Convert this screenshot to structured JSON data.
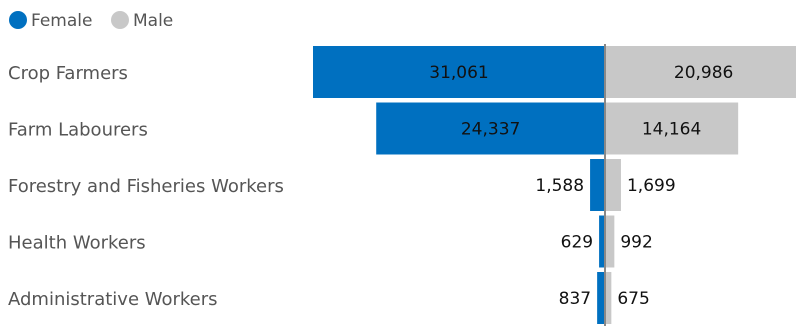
{
  "chart_data": {
    "type": "bar",
    "orientation": "horizontal-diverging",
    "title": "",
    "xlabel": "",
    "ylabel": "",
    "categories": [
      "Crop Farmers",
      "Farm Labourers",
      "Forestry and Fisheries Workers",
      "Health Workers",
      "Administrative Workers"
    ],
    "series": [
      {
        "name": "Female",
        "color": "#0070C0",
        "direction": "left",
        "values": [
          31061,
          24337,
          1588,
          629,
          837
        ]
      },
      {
        "name": "Male",
        "color": "#C8C8C8",
        "direction": "right",
        "values": [
          20986,
          14164,
          1699,
          992,
          675
        ]
      }
    ],
    "value_labels": {
      "Female": [
        "31,061",
        "24,337",
        "1,588",
        "629",
        "837"
      ],
      "Male": [
        "20,986",
        "14,164",
        "1,699",
        "992",
        "675"
      ]
    },
    "legend": {
      "placement": "top-left"
    },
    "grid": false
  }
}
